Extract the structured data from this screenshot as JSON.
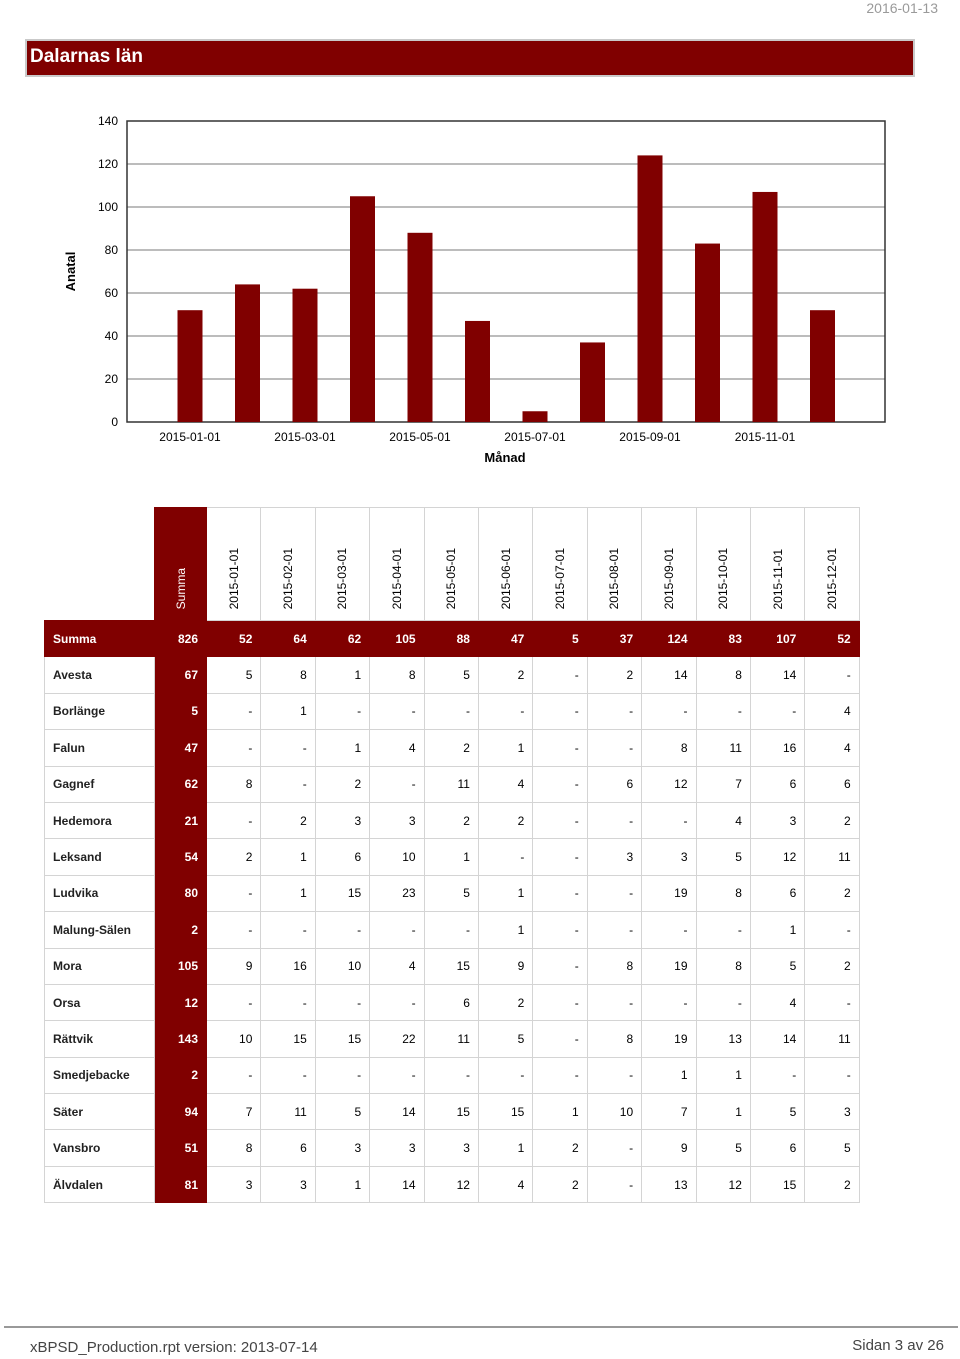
{
  "header": {
    "date": "2016-01-13",
    "title": "Dalarnas län"
  },
  "chart_data": {
    "type": "bar",
    "xlabel": "Månad",
    "ylabel": "Anatal",
    "ylim": [
      0,
      140
    ],
    "yticks": [
      0,
      20,
      40,
      60,
      80,
      100,
      120,
      140
    ],
    "grid": true,
    "categories": [
      "2015-01-01",
      "2015-02-01",
      "2015-03-01",
      "2015-04-01",
      "2015-05-01",
      "2015-06-01",
      "2015-07-01",
      "2015-08-01",
      "2015-09-01",
      "2015-10-01",
      "2015-11-01",
      "2015-12-01"
    ],
    "xtick_labels": [
      "2015-01-01",
      "2015-03-01",
      "2015-05-01",
      "2015-07-01",
      "2015-09-01",
      "2015-11-01"
    ],
    "values": [
      52,
      64,
      62,
      105,
      88,
      47,
      5,
      37,
      124,
      83,
      107,
      52
    ],
    "bar_color": "#800000"
  },
  "table": {
    "sum_label": "Summa",
    "columns": [
      "2015-01-01",
      "2015-02-01",
      "2015-03-01",
      "2015-04-01",
      "2015-05-01",
      "2015-06-01",
      "2015-07-01",
      "2015-08-01",
      "2015-09-01",
      "2015-10-01",
      "2015-11-01",
      "2015-12-01"
    ],
    "summary": {
      "label": "Summa",
      "total": "826",
      "values": [
        "52",
        "64",
        "62",
        "105",
        "88",
        "47",
        "5",
        "37",
        "124",
        "83",
        "107",
        "52"
      ]
    },
    "rows": [
      {
        "label": "Avesta",
        "total": "67",
        "values": [
          "5",
          "8",
          "1",
          "8",
          "5",
          "2",
          "-",
          "2",
          "14",
          "8",
          "14",
          "-"
        ]
      },
      {
        "label": "Borlänge",
        "total": "5",
        "values": [
          "-",
          "1",
          "-",
          "-",
          "-",
          "-",
          "-",
          "-",
          "-",
          "-",
          "-",
          "4"
        ]
      },
      {
        "label": "Falun",
        "total": "47",
        "values": [
          "-",
          "-",
          "1",
          "4",
          "2",
          "1",
          "-",
          "-",
          "8",
          "11",
          "16",
          "4"
        ]
      },
      {
        "label": "Gagnef",
        "total": "62",
        "values": [
          "8",
          "-",
          "2",
          "-",
          "11",
          "4",
          "-",
          "6",
          "12",
          "7",
          "6",
          "6"
        ]
      },
      {
        "label": "Hedemora",
        "total": "21",
        "values": [
          "-",
          "2",
          "3",
          "3",
          "2",
          "2",
          "-",
          "-",
          "-",
          "4",
          "3",
          "2"
        ]
      },
      {
        "label": "Leksand",
        "total": "54",
        "values": [
          "2",
          "1",
          "6",
          "10",
          "1",
          "-",
          "-",
          "3",
          "3",
          "5",
          "12",
          "11"
        ]
      },
      {
        "label": "Ludvika",
        "total": "80",
        "values": [
          "-",
          "1",
          "15",
          "23",
          "5",
          "1",
          "-",
          "-",
          "19",
          "8",
          "6",
          "2"
        ]
      },
      {
        "label": "Malung-Sälen",
        "total": "2",
        "values": [
          "-",
          "-",
          "-",
          "-",
          "-",
          "1",
          "-",
          "-",
          "-",
          "-",
          "1",
          "-"
        ]
      },
      {
        "label": "Mora",
        "total": "105",
        "values": [
          "9",
          "16",
          "10",
          "4",
          "15",
          "9",
          "-",
          "8",
          "19",
          "8",
          "5",
          "2"
        ]
      },
      {
        "label": "Orsa",
        "total": "12",
        "values": [
          "-",
          "-",
          "-",
          "-",
          "6",
          "2",
          "-",
          "-",
          "-",
          "-",
          "4",
          "-"
        ]
      },
      {
        "label": "Rättvik",
        "total": "143",
        "values": [
          "10",
          "15",
          "15",
          "22",
          "11",
          "5",
          "-",
          "8",
          "19",
          "13",
          "14",
          "11"
        ]
      },
      {
        "label": "Smedjebacke",
        "total": "2",
        "values": [
          "-",
          "-",
          "-",
          "-",
          "-",
          "-",
          "-",
          "-",
          "1",
          "1",
          "-",
          "-"
        ]
      },
      {
        "label": "Säter",
        "total": "94",
        "values": [
          "7",
          "11",
          "5",
          "14",
          "15",
          "15",
          "1",
          "10",
          "7",
          "1",
          "5",
          "3"
        ]
      },
      {
        "label": "Vansbro",
        "total": "51",
        "values": [
          "8",
          "6",
          "3",
          "3",
          "3",
          "1",
          "2",
          "-",
          "9",
          "5",
          "6",
          "5"
        ]
      },
      {
        "label": "Älvdalen",
        "total": "81",
        "values": [
          "3",
          "3",
          "1",
          "14",
          "12",
          "4",
          "2",
          "-",
          "13",
          "12",
          "15",
          "2"
        ]
      }
    ]
  },
  "footer": {
    "left": "xBPSD_Production.rpt   version: 2013-07-14",
    "right": "Sidan 3 av 26"
  }
}
